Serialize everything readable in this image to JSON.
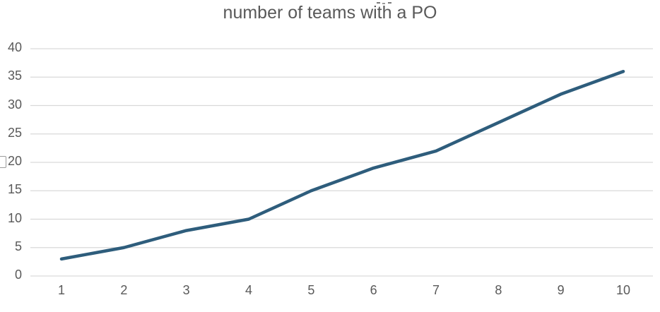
{
  "chart_data": {
    "type": "line",
    "title": "number of teams with a PO",
    "categories": [
      "1",
      "2",
      "3",
      "4",
      "5",
      "6",
      "7",
      "8",
      "9",
      "10"
    ],
    "values": [
      3,
      5,
      8,
      10,
      15,
      19,
      22,
      27,
      32,
      36
    ],
    "yticks": [
      "0",
      "5",
      "10",
      "15",
      "20",
      "25",
      "30",
      "35",
      "40"
    ],
    "ylim": [
      0,
      40
    ],
    "xlabel": "",
    "ylabel": "",
    "grid": "horizontal-only",
    "legend": "none",
    "line_color": "#2E5D7C",
    "gridline_color": "#D9D9D9",
    "tick_color": "#595959",
    "title_color": "#595959",
    "background": "#FFFFFF"
  }
}
